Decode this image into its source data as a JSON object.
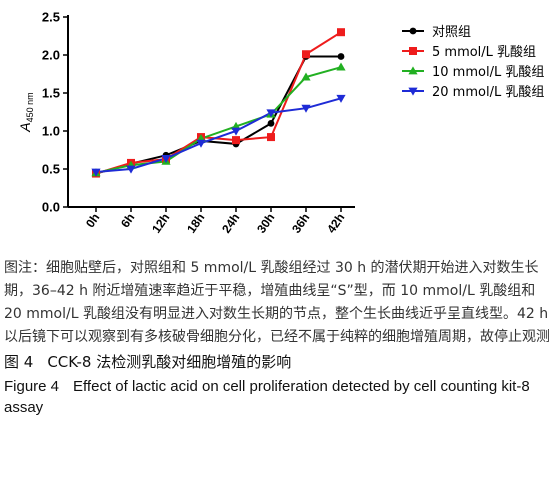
{
  "chart_data": {
    "type": "line",
    "categories": [
      "0h",
      "6h",
      "12h",
      "18h",
      "24h",
      "30h",
      "36h",
      "42h"
    ],
    "series": [
      {
        "name": "对照组",
        "color": "#000000",
        "marker": "circle",
        "values": [
          0.44,
          0.57,
          0.68,
          0.87,
          0.83,
          1.1,
          1.98,
          1.98
        ]
      },
      {
        "name": "5 mmol/L 乳酸组",
        "color": "#ee1c1c",
        "marker": "square",
        "values": [
          0.44,
          0.58,
          0.63,
          0.92,
          0.88,
          0.92,
          2.01,
          2.3
        ]
      },
      {
        "name": "10 mmol/L 乳酸组",
        "color": "#22b022",
        "marker": "triangle-up",
        "values": [
          0.45,
          0.55,
          0.6,
          0.9,
          1.06,
          1.22,
          1.71,
          1.84
        ]
      },
      {
        "name": "20 mmol/L 乳酸组",
        "color": "#1e2bd6",
        "marker": "triangle-down",
        "values": [
          0.46,
          0.5,
          0.64,
          0.84,
          1.0,
          1.24,
          1.3,
          1.43
        ]
      }
    ],
    "ylabel_main": "A",
    "ylabel_sub": "450 nm",
    "ylim": [
      0,
      2.5
    ],
    "yticks": [
      "0.0",
      "0.5",
      "1.0",
      "1.5",
      "2.0",
      "2.5"
    ],
    "grid": false,
    "legend_position": "top-right"
  },
  "caption": {
    "note": "图注：细胞贴壁后，对照组和 5 mmol/L 乳酸组经过 30 h 的潜伏期开始进入对数生长期，36–42 h 附近增殖速率趋近于平稳，增殖曲线呈“S”型，而 10 mmol/L 乳酸组和 20 mmol/L 乳酸组没有明显进入对数生长期的节点，整个生长曲线近乎呈直线型。42 h 以后镜下可以观察到有多核破骨细胞分化，已经不属于纯粹的细胞增殖周期，故停止观测",
    "figure_cn_number": "图 4",
    "figure_cn_title": "CCK-8 法检测乳酸对细胞增殖的影响",
    "figure_en_number": "Figure 4",
    "figure_en_title": "Effect of lactic acid on cell proliferation detected by cell counting kit-8 assay"
  }
}
